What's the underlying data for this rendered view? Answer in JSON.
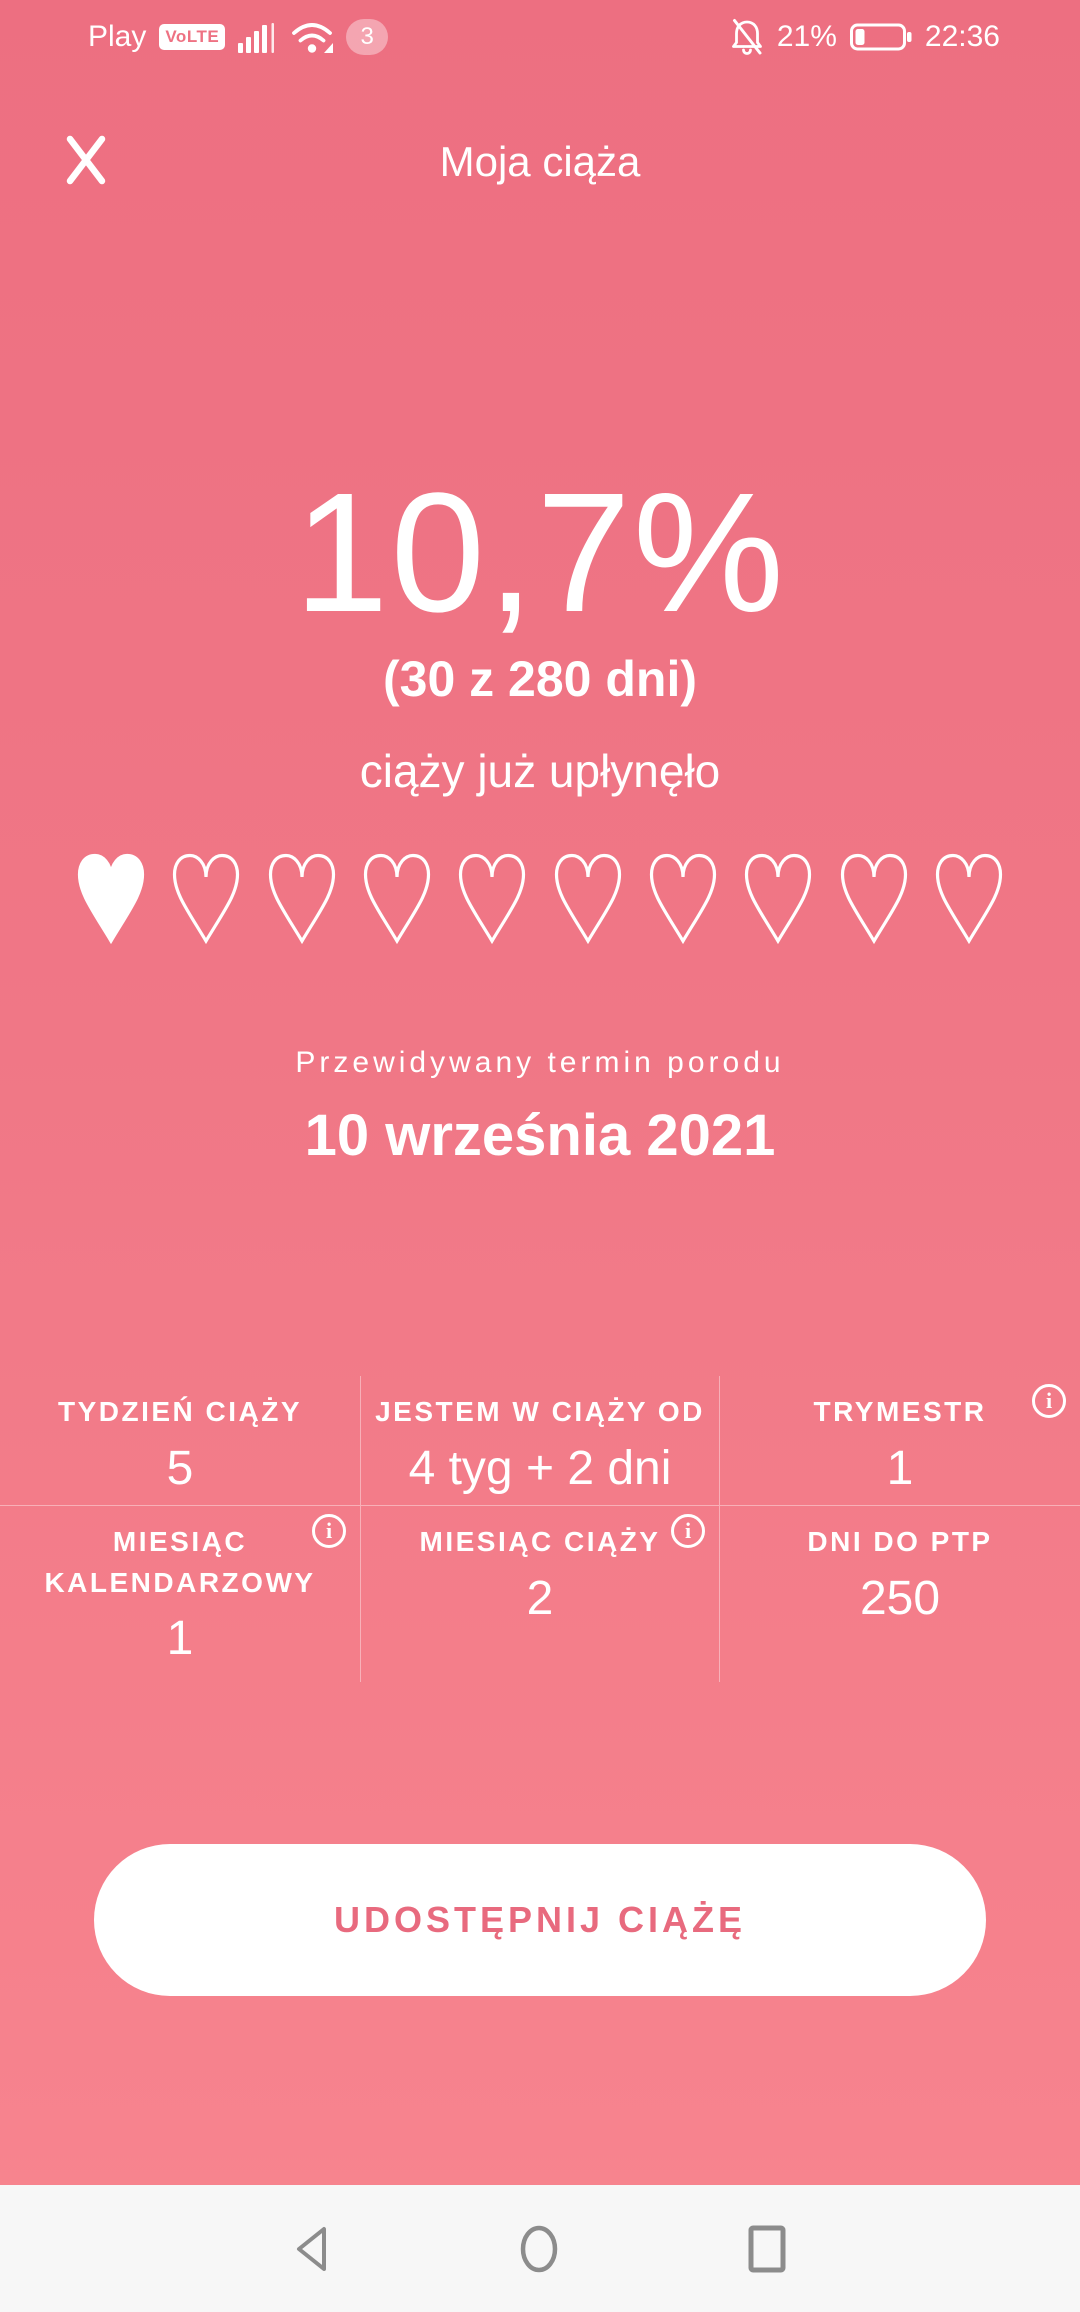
{
  "colors": {
    "background_top": "#ed6f81",
    "background_bottom": "#f8858f",
    "accent_pink": "#e86a7e",
    "nav_bar_background": "#f7f7f7",
    "nav_icon_gray": "#8c8c8c"
  },
  "status_bar": {
    "carrier": "Play",
    "volte_badge": "VoLTE",
    "sim_badge": "3",
    "battery_percent": "21%",
    "time": "22:36",
    "icons": {
      "signal": "signal-strength-bars",
      "wifi": "wifi",
      "notifications": "notifications-off-bell",
      "battery": "battery-low"
    }
  },
  "header": {
    "title": "Moja ciąża",
    "close_icon": "close-x"
  },
  "progress": {
    "percent": "10,7%",
    "days_text": "(30 z 280 dni)",
    "caption": "ciąży już upłynęło",
    "hearts_total": 10,
    "hearts_filled": 1
  },
  "due_date": {
    "label": "Przewidywany termin porodu",
    "date": "10 września 2021"
  },
  "stats": {
    "cells": [
      {
        "label": "TYDZIEŃ CIĄŻY",
        "value": "5",
        "info": false
      },
      {
        "label": "JESTEM W CIĄŻY OD",
        "value": "4 tyg + 2 dni",
        "info": false
      },
      {
        "label": "TRYMESTR",
        "value": "1",
        "info": true
      },
      {
        "label": "MIESIĄC KALENDARZOWY",
        "value": "1",
        "info": true
      },
      {
        "label": "MIESIĄC CIĄŻY",
        "value": "2",
        "info": true
      },
      {
        "label": "DNI DO PTP",
        "value": "250",
        "info": false
      }
    ],
    "info_glyph": "i"
  },
  "share_button": {
    "label": "UDOSTĘPNIJ CIĄŻĘ"
  },
  "nav_bar": {
    "icons": [
      "back",
      "home",
      "recents"
    ]
  }
}
